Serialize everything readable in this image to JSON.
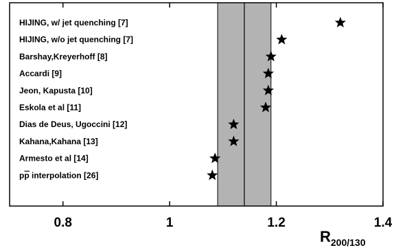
{
  "chart_data": {
    "type": "scatter",
    "title": "",
    "xlabel": "R",
    "xlabel_subscript": "200/130",
    "ylabel": "",
    "xlim": [
      0.7,
      1.4
    ],
    "xticks": [
      0.8,
      1,
      1.2,
      1.4
    ],
    "xtick_labels": [
      "0.8",
      "1",
      "1.2",
      "1.4"
    ],
    "grid": false,
    "marker": "star",
    "band": {
      "low": 1.09,
      "central": 1.14,
      "high": 1.19,
      "color": "#b3b3b3"
    },
    "points": [
      {
        "label": "HIJING, w/ jet quenching  [7]",
        "x": 1.32
      },
      {
        "label": "HIJING, w/o jet quenching [7]",
        "x": 1.21
      },
      {
        "label": "Barshay,Kreyerhoff [8]",
        "x": 1.19
      },
      {
        "label": "Accardi [9]",
        "x": 1.185
      },
      {
        "label": "Jeon, Kapusta [10]",
        "x": 1.185
      },
      {
        "label": "Eskola et al [11]",
        "x": 1.18
      },
      {
        "label": "Dias de Deus, Ugoccini [12]",
        "x": 1.12
      },
      {
        "label": "Kahana,Kahana [13]",
        "x": 1.12
      },
      {
        "label": "Armesto et al [14]",
        "x": 1.085
      },
      {
        "label": "pp interpolation [26]",
        "x": 1.08,
        "label_overline_prefix": "p",
        "label_rest": "p interpolation [26]",
        "label_first": "p"
      }
    ]
  }
}
